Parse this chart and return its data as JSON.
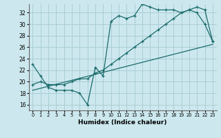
{
  "xlabel": "Humidex (Indice chaleur)",
  "bg_color": "#cce8ee",
  "grid_color": "#aacdd6",
  "line_color": "#1a6b6b",
  "xmin": -0.5,
  "xmax": 23.5,
  "ymin": 15,
  "ymax": 33.5,
  "yticks": [
    16,
    18,
    20,
    22,
    24,
    26,
    28,
    30,
    32
  ],
  "xticks": [
    0,
    1,
    2,
    3,
    4,
    5,
    6,
    7,
    8,
    9,
    10,
    11,
    12,
    13,
    14,
    15,
    16,
    17,
    18,
    19,
    20,
    21,
    22,
    23
  ],
  "line1_x": [
    0,
    1,
    2,
    3,
    4,
    5,
    6,
    7,
    8,
    9,
    10,
    11,
    12,
    13,
    14,
    15,
    16,
    17,
    18,
    19,
    20,
    21,
    22,
    23
  ],
  "line1_y": [
    23,
    21,
    19,
    18.5,
    18.5,
    18.5,
    18,
    16,
    22.5,
    21,
    30.5,
    31.5,
    31,
    31.5,
    33.5,
    33,
    32.5,
    32.5,
    32.5,
    32,
    32.5,
    32,
    30,
    27
  ],
  "line2_x": [
    0,
    1,
    2,
    3,
    4,
    5,
    6,
    7,
    8,
    9,
    10,
    11,
    12,
    13,
    14,
    15,
    16,
    17,
    18,
    19,
    20,
    21,
    22,
    23
  ],
  "line2_y": [
    19.5,
    20,
    19.5,
    19.5,
    19.5,
    20,
    20.5,
    20.5,
    21.5,
    22,
    23,
    24,
    25,
    26,
    27,
    28,
    29,
    30,
    31,
    32,
    32.5,
    33,
    32.5,
    27
  ],
  "line3_x": [
    0,
    23
  ],
  "line3_y": [
    18.5,
    26.5
  ]
}
